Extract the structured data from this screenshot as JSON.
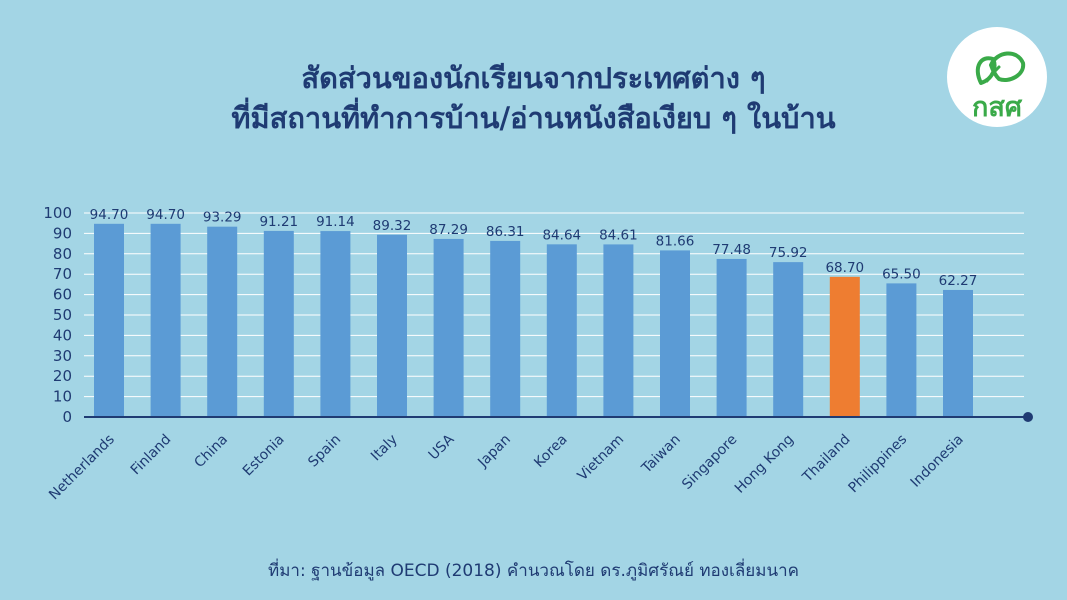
{
  "header": {
    "title_line1": "สัดส่วนของนักเรียนจากประเทศต่าง ๆ",
    "title_line2": "ที่มีสถานที่ทำการบ้าน/อ่านหนังสือเงียบ ๆ ในบ้าน"
  },
  "logo": {
    "text": "กสศ",
    "icon": "sprout-logo-icon",
    "color": "#3aaa49"
  },
  "colors": {
    "background": "#a3d5e5",
    "bar": "#5b9bd5",
    "highlight": "#ee7d31",
    "text": "#1f3b73",
    "grid": "#ffffff"
  },
  "chart_data": {
    "type": "bar",
    "categories": [
      "Netherlands",
      "Finland",
      "China",
      "Estonia",
      "Spain",
      "Italy",
      "USA",
      "Japan",
      "Korea",
      "Vietnam",
      "Taiwan",
      "Singapore",
      "Hong Kong",
      "Thailand",
      "Philippines",
      "Indonesia"
    ],
    "values": [
      94.7,
      94.7,
      93.29,
      91.21,
      91.14,
      89.32,
      87.29,
      86.31,
      84.64,
      84.61,
      81.66,
      77.48,
      75.92,
      68.7,
      65.5,
      62.27
    ],
    "value_labels": [
      "94.70",
      "94.70",
      "93.29",
      "91.21",
      "91.14",
      "89.32",
      "87.29",
      "86.31",
      "84.64",
      "84.61",
      "81.66",
      "77.48",
      "75.92",
      "68.70",
      "65.50",
      "62.27"
    ],
    "highlight_category": "Thailand",
    "ylim": [
      0,
      100
    ],
    "yticks": [
      0,
      10,
      20,
      30,
      40,
      50,
      60,
      70,
      80,
      90,
      100
    ],
    "grid": true,
    "xlabel": "",
    "ylabel": ""
  },
  "footer": {
    "source": "ที่มา: ฐานข้อมูล OECD (2018) คำนวณโดย ดร.ภูมิศรัณย์ ทองเลี่ยมนาค"
  }
}
